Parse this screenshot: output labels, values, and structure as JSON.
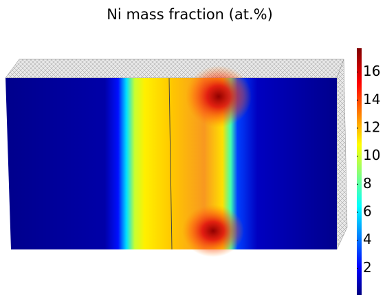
{
  "chart_data": {
    "type": "heatmap",
    "title": "Ni mass fraction (at.%)",
    "colorscale": "jet",
    "clim": [
      0.1,
      17.7
    ],
    "cticks": [
      2,
      4,
      6,
      8,
      10,
      12,
      14,
      16
    ]
  }
}
